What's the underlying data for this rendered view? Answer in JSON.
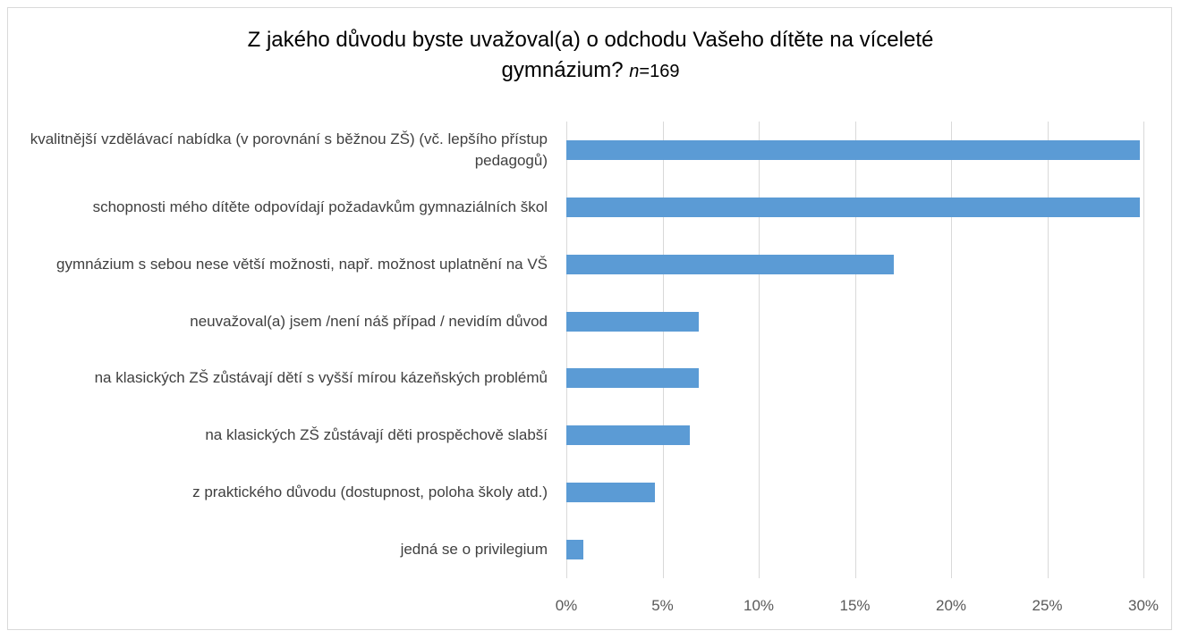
{
  "chart_data": {
    "type": "bar",
    "orientation": "horizontal",
    "title": [
      "Z jakého důvodu byste uvažoval(a) o odchodu Vašeho dítěte na víceleté",
      "gymnázium?",
      "n",
      "=169"
    ],
    "categories": [
      "kvalitnější vzdělávací nabídka (v porovnání s běžnou ZŠ) (vč. lepšího přístup pedagogů)",
      "schopnosti mého dítěte odpovídají požadavkům gymnaziálních škol",
      "gymnázium s sebou nese větší možnosti, např. možnost uplatnění na VŠ",
      "neuvažoval(a) jsem /není náš případ / nevidím důvod",
      "na klasických ZŠ zůstávají dětí s vyšší mírou kázeňských problémů",
      "na klasických ZŠ zůstávají děti prospěchově slabší",
      "z praktického důvodu (dostupnost, poloha školy atd.)",
      "jedná se o privilegium"
    ],
    "values": [
      29.8,
      29.8,
      17.0,
      6.9,
      6.9,
      6.4,
      4.6,
      0.9
    ],
    "color": "#5b9bd5",
    "xlim": [
      0,
      30
    ],
    "xticks": [
      {
        "value": 0,
        "label": "0%"
      },
      {
        "value": 5,
        "label": "5%"
      },
      {
        "value": 10,
        "label": "10%"
      },
      {
        "value": 15,
        "label": "15%"
      },
      {
        "value": 20,
        "label": "20%"
      },
      {
        "value": 25,
        "label": "25%"
      },
      {
        "value": 30,
        "label": "30%"
      }
    ],
    "grid": true
  }
}
